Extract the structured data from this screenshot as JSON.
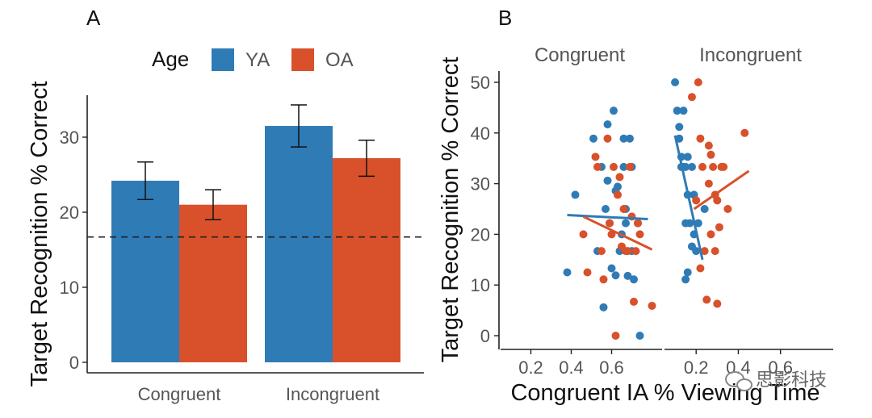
{
  "panels": {
    "a_label": "A",
    "b_label": "B"
  },
  "colors": {
    "ya": "#2F7BB6",
    "oa": "#D9512B",
    "axis": "#222222",
    "tick_text": "#555555"
  },
  "watermark": {
    "text": "思影科技",
    "icon": "wechat-icon"
  },
  "chart_data": [
    {
      "type": "bar",
      "panel": "A",
      "ylabel": "Target Recognition % Correct",
      "xlabel": "",
      "ylim": [
        0,
        36
      ],
      "yticks": [
        0,
        10,
        20,
        30
      ],
      "categories": [
        "Congruent",
        "Incongruent"
      ],
      "legend": {
        "title": "Age",
        "position": "top",
        "entries": [
          "YA",
          "OA"
        ]
      },
      "series": [
        {
          "name": "YA",
          "values": [
            24.2,
            31.5
          ],
          "error": [
            2.5,
            2.8
          ]
        },
        {
          "name": "OA",
          "values": [
            21.0,
            27.2
          ],
          "error": [
            2.0,
            2.4
          ]
        }
      ],
      "reference_line": {
        "y": 16.7,
        "style": "dashed"
      }
    },
    {
      "type": "scatter",
      "panel": "B",
      "ylabel": "Target Recognition % Correct",
      "xlabel": "Congruent IA % Viewing Time",
      "ylim": [
        -3,
        52
      ],
      "yticks": [
        0,
        10,
        20,
        30,
        40,
        50
      ],
      "xlim": [
        0.05,
        0.85
      ],
      "xticks": [
        0.2,
        0.4,
        0.6
      ],
      "facets": [
        {
          "label": "Congruent",
          "series": [
            {
              "name": "YA",
              "points": [
                [
                  0.38,
                  12.5
                ],
                [
                  0.42,
                  27.8
                ],
                [
                  0.51,
                  38.9
                ],
                [
                  0.53,
                  16.7
                ],
                [
                  0.55,
                  33.3
                ],
                [
                  0.57,
                  25.0
                ],
                [
                  0.58,
                  41.7
                ],
                [
                  0.59,
                  22.2
                ],
                [
                  0.6,
                  13.3
                ],
                [
                  0.61,
                  44.4
                ],
                [
                  0.62,
                  11.9
                ],
                [
                  0.63,
                  29.4
                ],
                [
                  0.64,
                  16.7
                ],
                [
                  0.65,
                  20.0
                ],
                [
                  0.66,
                  38.9
                ],
                [
                  0.67,
                  22.2
                ],
                [
                  0.68,
                  11.8
                ],
                [
                  0.69,
                  38.9
                ],
                [
                  0.71,
                  11.1
                ],
                [
                  0.56,
                  5.6
                ],
                [
                  0.58,
                  30.6
                ],
                [
                  0.66,
                  33.3
                ],
                [
                  0.7,
                  33.3
                ],
                [
                  0.73,
                  22.2
                ],
                [
                  0.74,
                  0.0
                ],
                [
                  0.62,
                  28.6
                ],
                [
                  0.67,
                  25.0
                ],
                [
                  0.7,
                  16.7
                ]
              ]
            },
            {
              "name": "OA",
              "points": [
                [
                  0.46,
                  20.0
                ],
                [
                  0.48,
                  12.5
                ],
                [
                  0.52,
                  35.3
                ],
                [
                  0.53,
                  33.3
                ],
                [
                  0.55,
                  16.7
                ],
                [
                  0.56,
                  11.1
                ],
                [
                  0.58,
                  38.9
                ],
                [
                  0.59,
                  22.2
                ],
                [
                  0.6,
                  20.0
                ],
                [
                  0.61,
                  33.3
                ],
                [
                  0.62,
                  0.0
                ],
                [
                  0.63,
                  27.8
                ],
                [
                  0.64,
                  31.3
                ],
                [
                  0.65,
                  17.6
                ],
                [
                  0.66,
                  25.0
                ],
                [
                  0.67,
                  16.7
                ],
                [
                  0.68,
                  16.7
                ],
                [
                  0.69,
                  33.3
                ],
                [
                  0.7,
                  23.5
                ],
                [
                  0.71,
                  6.7
                ],
                [
                  0.72,
                  16.7
                ],
                [
                  0.73,
                  22.2
                ],
                [
                  0.8,
                  5.9
                ],
                [
                  0.74,
                  20.0
                ]
              ]
            }
          ],
          "fits": [
            {
              "name": "YA",
              "x": [
                0.38,
                0.78
              ],
              "y": [
                23.8,
                23.0
              ]
            },
            {
              "name": "OA",
              "x": [
                0.46,
                0.8
              ],
              "y": [
                23.5,
                17.0
              ]
            }
          ]
        },
        {
          "label": "Incongruent",
          "series": [
            {
              "name": "YA",
              "points": [
                [
                  0.1,
                  50.0
                ],
                [
                  0.11,
                  44.4
                ],
                [
                  0.12,
                  41.2
                ],
                [
                  0.12,
                  38.9
                ],
                [
                  0.13,
                  35.3
                ],
                [
                  0.14,
                  33.3
                ],
                [
                  0.14,
                  44.4
                ],
                [
                  0.15,
                  33.3
                ],
                [
                  0.15,
                  11.1
                ],
                [
                  0.16,
                  27.8
                ],
                [
                  0.16,
                  12.5
                ],
                [
                  0.17,
                  22.2
                ],
                [
                  0.18,
                  17.6
                ],
                [
                  0.18,
                  33.3
                ],
                [
                  0.19,
                  20.0
                ],
                [
                  0.2,
                  16.7
                ],
                [
                  0.21,
                  22.2
                ],
                [
                  0.16,
                  35.3
                ],
                [
                  0.13,
                  33.3
                ],
                [
                  0.24,
                  25.0
                ],
                [
                  0.15,
                  22.2
                ],
                [
                  0.19,
                  27.8
                ]
              ]
            },
            {
              "name": "OA",
              "points": [
                [
                  0.18,
                  47.1
                ],
                [
                  0.21,
                  50.0
                ],
                [
                  0.22,
                  38.9
                ],
                [
                  0.23,
                  33.3
                ],
                [
                  0.25,
                  7.1
                ],
                [
                  0.26,
                  37.5
                ],
                [
                  0.27,
                  35.7
                ],
                [
                  0.28,
                  33.3
                ],
                [
                  0.29,
                  27.8
                ],
                [
                  0.3,
                  26.7
                ],
                [
                  0.3,
                  6.3
                ],
                [
                  0.31,
                  21.4
                ],
                [
                  0.32,
                  33.3
                ],
                [
                  0.33,
                  33.3
                ],
                [
                  0.35,
                  25.0
                ],
                [
                  0.22,
                  13.3
                ],
                [
                  0.24,
                  16.7
                ],
                [
                  0.27,
                  20.0
                ],
                [
                  0.29,
                  16.7
                ],
                [
                  0.43,
                  40.0
                ],
                [
                  0.2,
                  26.7
                ],
                [
                  0.26,
                  30.0
                ]
              ]
            }
          ],
          "fits": [
            {
              "name": "YA",
              "x": [
                0.1,
                0.23
              ],
              "y": [
                39.5,
                15.0
              ]
            },
            {
              "name": "OA",
              "x": [
                0.19,
                0.45
              ],
              "y": [
                25.0,
                32.5
              ]
            }
          ]
        }
      ]
    }
  ]
}
